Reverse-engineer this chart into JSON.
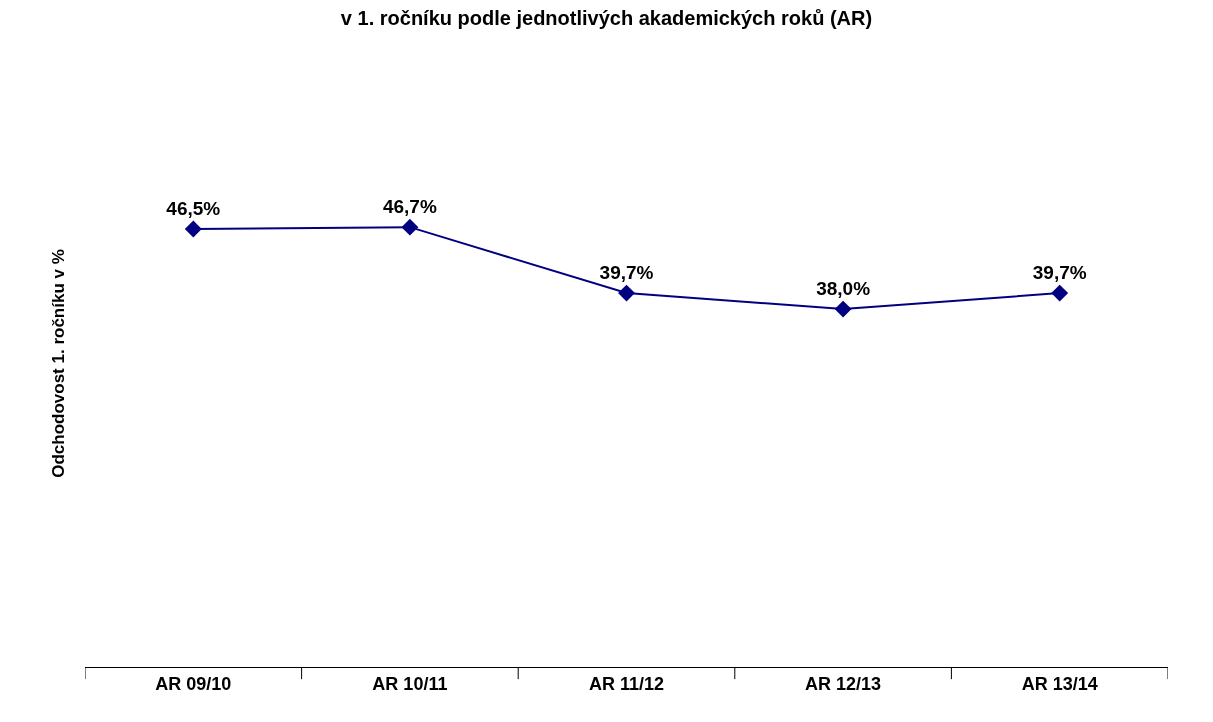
{
  "chart_data": {
    "type": "line",
    "title": "v 1. ročníku podle jednotlivých akademických roků (AR)",
    "ylabel": "Odchodovost 1. ročníku v %",
    "categories": [
      "AR 09/10",
      "AR 10/11",
      "AR 11/12",
      "AR 12/13",
      "AR 13/14"
    ],
    "series": [
      {
        "color": "#000080",
        "values": [
          46.5,
          46.7,
          39.7,
          38.0,
          39.7
        ],
        "value_labels": [
          "46,5%",
          "46,7%",
          "39,7%",
          "38,0%",
          "39,7%"
        ]
      }
    ],
    "marker": "diamond",
    "line_style": "solid"
  }
}
